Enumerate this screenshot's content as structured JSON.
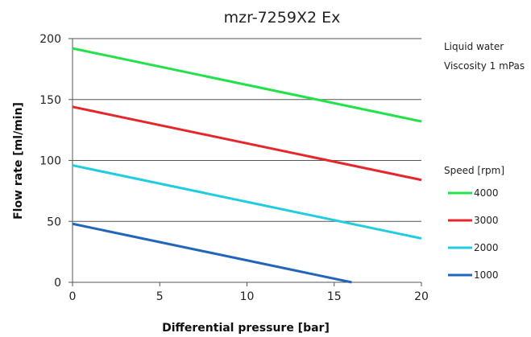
{
  "chart_data": {
    "type": "line",
    "title": "mzr-7259X2 Ex",
    "xlabel": "Differential pressure [bar]",
    "ylabel": "Flow rate [ml/min]",
    "xlim": [
      0,
      20
    ],
    "ylim": [
      0,
      200
    ],
    "xticks": [
      0,
      5,
      10,
      15,
      20
    ],
    "yticks": [
      0,
      50,
      100,
      150,
      200
    ],
    "grid": "horizontal",
    "notes": [
      "Liquid water",
      "Viscosity 1 mPas"
    ],
    "legend_title": "Speed [rpm]",
    "legend_position": "right",
    "series": [
      {
        "name": "4000",
        "color": "#22e24a",
        "points": [
          [
            0,
            192
          ],
          [
            20,
            132
          ]
        ]
      },
      {
        "name": "3000",
        "color": "#e5262b",
        "points": [
          [
            0,
            144
          ],
          [
            20,
            84
          ]
        ]
      },
      {
        "name": "2000",
        "color": "#20cde0",
        "points": [
          [
            0,
            96
          ],
          [
            20,
            36
          ]
        ]
      },
      {
        "name": "1000",
        "color": "#2266bb",
        "points": [
          [
            0,
            48
          ],
          [
            16,
            0
          ]
        ]
      }
    ]
  }
}
